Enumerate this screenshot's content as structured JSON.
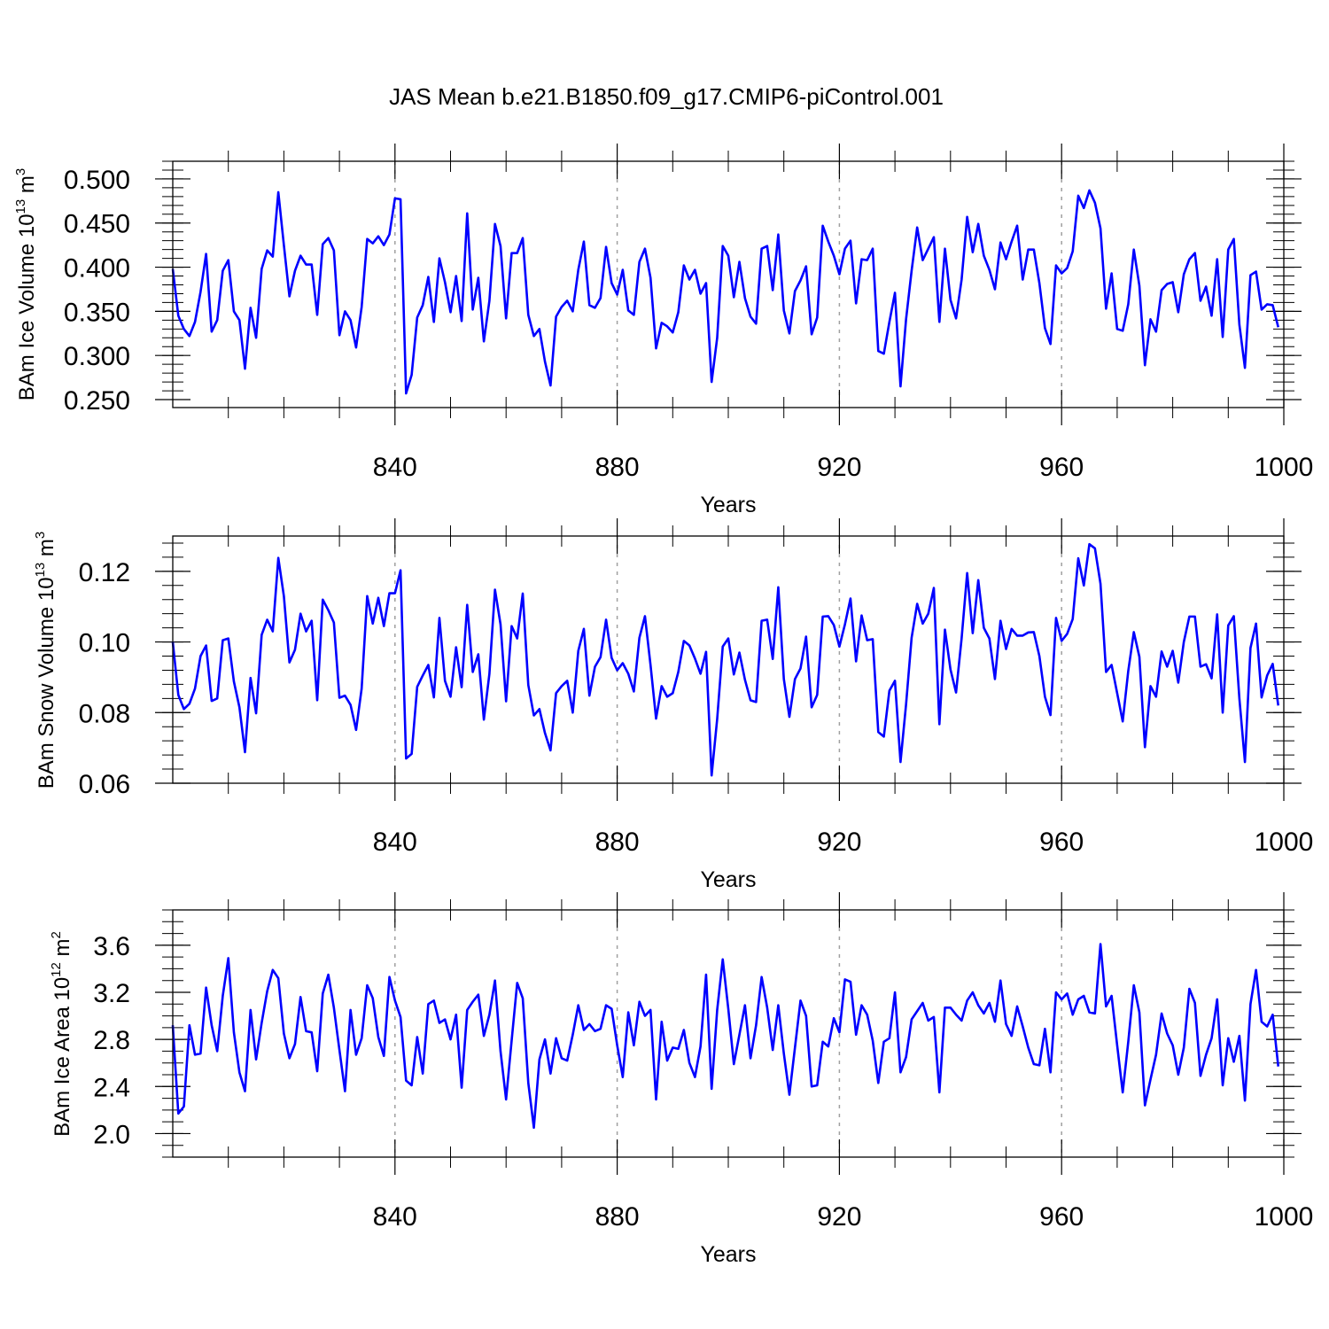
{
  "chart_data": {
    "type": "line",
    "title": "JAS Mean b.e21.B1850.f09_g17.CMIP6-piControl.001",
    "x_start": 800,
    "x_step": 1,
    "xlim": [
      800,
      1000
    ],
    "xticks": [
      840,
      880,
      920,
      960,
      1000
    ],
    "xtick_labels": [
      "840",
      "880",
      "920",
      "960",
      "1000"
    ],
    "line_color": "#0000ff",
    "grid_color": "#a0a0a0",
    "panels": [
      {
        "id": "ice-volume",
        "xlabel": "Years",
        "ylabel_text": "BAm Ice Volume 10",
        "ylabel_exp": "13",
        "ylabel_unit": " m",
        "ylabel_unit_exp": "3",
        "ylim": [
          0.241,
          0.52
        ],
        "yticks": [
          0.25,
          0.3,
          0.35,
          0.4,
          0.45,
          0.5
        ],
        "ytick_labels": [
          "0.250",
          "0.300",
          "0.350",
          "0.400",
          "0.450",
          "0.500"
        ],
        "minor_step": 0.01,
        "values": [
          0.398,
          0.345,
          0.33,
          0.322,
          0.338,
          0.372,
          0.415,
          0.327,
          0.34,
          0.396,
          0.408,
          0.35,
          0.34,
          0.285,
          0.354,
          0.32,
          0.398,
          0.419,
          0.412,
          0.485,
          0.425,
          0.367,
          0.396,
          0.413,
          0.403,
          0.403,
          0.346,
          0.426,
          0.433,
          0.419,
          0.323,
          0.35,
          0.34,
          0.309,
          0.355,
          0.432,
          0.427,
          0.435,
          0.425,
          0.437,
          0.478,
          0.477,
          0.257,
          0.278,
          0.343,
          0.357,
          0.389,
          0.338,
          0.41,
          0.383,
          0.349,
          0.39,
          0.339,
          0.461,
          0.352,
          0.388,
          0.316,
          0.362,
          0.449,
          0.424,
          0.342,
          0.416,
          0.416,
          0.433,
          0.346,
          0.322,
          0.33,
          0.293,
          0.266,
          0.344,
          0.355,
          0.362,
          0.35,
          0.397,
          0.429,
          0.357,
          0.354,
          0.365,
          0.423,
          0.382,
          0.369,
          0.397,
          0.351,
          0.346,
          0.406,
          0.421,
          0.388,
          0.308,
          0.337,
          0.333,
          0.326,
          0.349,
          0.402,
          0.386,
          0.397,
          0.37,
          0.382,
          0.27,
          0.32,
          0.424,
          0.413,
          0.366,
          0.406,
          0.365,
          0.344,
          0.336,
          0.421,
          0.424,
          0.374,
          0.437,
          0.351,
          0.325,
          0.373,
          0.385,
          0.401,
          0.324,
          0.343,
          0.447,
          0.429,
          0.413,
          0.392,
          0.421,
          0.43,
          0.359,
          0.409,
          0.408,
          0.421,
          0.305,
          0.302,
          0.338,
          0.371,
          0.265,
          0.341,
          0.396,
          0.445,
          0.408,
          0.421,
          0.434,
          0.338,
          0.421,
          0.363,
          0.342,
          0.386,
          0.457,
          0.417,
          0.449,
          0.413,
          0.397,
          0.375,
          0.428,
          0.409,
          0.429,
          0.447,
          0.386,
          0.42,
          0.42,
          0.382,
          0.331,
          0.313,
          0.402,
          0.393,
          0.399,
          0.418,
          0.481,
          0.467,
          0.487,
          0.473,
          0.444,
          0.353,
          0.393,
          0.33,
          0.328,
          0.358,
          0.42,
          0.379,
          0.289,
          0.341,
          0.327,
          0.374,
          0.381,
          0.383,
          0.349,
          0.392,
          0.409,
          0.416,
          0.362,
          0.378,
          0.345,
          0.409,
          0.321,
          0.42,
          0.432,
          0.335,
          0.286,
          0.391,
          0.395,
          0.352,
          0.358,
          0.357,
          0.332
        ]
      },
      {
        "id": "snow-volume",
        "xlabel": "Years",
        "ylabel_text": "BAm Snow Volume 10",
        "ylabel_exp": "13",
        "ylabel_unit": " m",
        "ylabel_unit_exp": "3",
        "ylim": [
          0.06,
          0.13
        ],
        "yticks": [
          0.06,
          0.08,
          0.1,
          0.12
        ],
        "ytick_labels": [
          "0.06",
          "0.08",
          "0.10",
          "0.12"
        ],
        "minor_step": 0.004,
        "values": [
          0.1,
          0.085,
          0.081,
          0.0825,
          0.0868,
          0.096,
          0.099,
          0.0833,
          0.084,
          0.1005,
          0.101,
          0.0888,
          0.0815,
          0.0688,
          0.0898,
          0.0798,
          0.102,
          0.1063,
          0.103,
          0.1238,
          0.113,
          0.0942,
          0.0978,
          0.108,
          0.103,
          0.106,
          0.0835,
          0.112,
          0.109,
          0.1055,
          0.0842,
          0.0848,
          0.0822,
          0.0751,
          0.0868,
          0.113,
          0.1052,
          0.1125,
          0.1045,
          0.1138,
          0.1138,
          0.1203,
          0.067,
          0.0683,
          0.0873,
          0.0905,
          0.0935,
          0.0843,
          0.1068,
          0.089,
          0.0845,
          0.0985,
          0.0872,
          0.1105,
          0.0915,
          0.0965,
          0.078,
          0.091,
          0.1148,
          0.105,
          0.0832,
          0.1045,
          0.101,
          0.1137,
          0.0878,
          0.0792,
          0.081,
          0.0742,
          0.0693,
          0.0855,
          0.0875,
          0.089,
          0.08,
          0.0975,
          0.1037,
          0.0848,
          0.093,
          0.0957,
          0.1063,
          0.0955,
          0.092,
          0.094,
          0.091,
          0.086,
          0.1012,
          0.1073,
          0.0935,
          0.0783,
          0.0875,
          0.0845,
          0.0855,
          0.0915,
          0.1003,
          0.099,
          0.0953,
          0.091,
          0.0972,
          0.0622,
          0.0782,
          0.0987,
          0.101,
          0.0908,
          0.097,
          0.0893,
          0.0835,
          0.083,
          0.106,
          0.1063,
          0.0952,
          0.1155,
          0.0895,
          0.0788,
          0.0895,
          0.0925,
          0.1015,
          0.0815,
          0.085,
          0.1072,
          0.1073,
          0.1048,
          0.0987,
          0.105,
          0.1123,
          0.0945,
          0.1075,
          0.1005,
          0.1008,
          0.0745,
          0.0732,
          0.0862,
          0.089,
          0.066,
          0.0823,
          0.1012,
          0.1108,
          0.1052,
          0.108,
          0.1153,
          0.0767,
          0.1035,
          0.0922,
          0.0857,
          0.101,
          0.1195,
          0.1025,
          0.1175,
          0.104,
          0.101,
          0.0895,
          0.106,
          0.098,
          0.1037,
          0.1018,
          0.1018,
          0.1027,
          0.1028,
          0.096,
          0.0845,
          0.0793,
          0.1068,
          0.1003,
          0.1023,
          0.1065,
          0.1237,
          0.116,
          0.1277,
          0.1265,
          0.1165,
          0.0915,
          0.0935,
          0.0855,
          0.0775,
          0.0918,
          0.1028,
          0.0958,
          0.0702,
          0.0875,
          0.0845,
          0.0973,
          0.093,
          0.0975,
          0.0885,
          0.1,
          0.1072,
          0.1072,
          0.093,
          0.0937,
          0.0897,
          0.1078,
          0.08,
          0.1047,
          0.1073,
          0.084,
          0.066,
          0.0983,
          0.1052,
          0.0843,
          0.0905,
          0.0938,
          0.082
        ]
      },
      {
        "id": "ice-area",
        "xlabel": "Years",
        "ylabel_text": "BAm Ice Area 10",
        "ylabel_exp": "12",
        "ylabel_unit": " m",
        "ylabel_unit_exp": "2",
        "ylim": [
          1.8,
          3.9
        ],
        "yticks": [
          2.0,
          2.4,
          2.8,
          3.2,
          3.6
        ],
        "ytick_labels": [
          "2.0",
          "2.4",
          "2.8",
          "3.2",
          "3.6"
        ],
        "minor_step": 0.1,
        "values": [
          2.92,
          2.17,
          2.23,
          2.92,
          2.67,
          2.68,
          3.24,
          2.92,
          2.7,
          3.17,
          3.49,
          2.86,
          2.52,
          2.36,
          3.05,
          2.63,
          2.94,
          3.21,
          3.39,
          3.32,
          2.85,
          2.64,
          2.76,
          3.16,
          2.87,
          2.86,
          2.53,
          3.19,
          3.35,
          3.07,
          2.71,
          2.36,
          3.05,
          2.67,
          2.81,
          3.26,
          3.15,
          2.82,
          2.66,
          3.33,
          3.13,
          2.99,
          2.45,
          2.41,
          2.82,
          2.51,
          3.1,
          3.13,
          2.94,
          2.97,
          2.8,
          3.01,
          2.39,
          3.05,
          3.12,
          3.18,
          2.83,
          3.01,
          3.3,
          2.7,
          2.29,
          2.79,
          3.28,
          3.15,
          2.43,
          2.05,
          2.63,
          2.8,
          2.51,
          2.81,
          2.64,
          2.62,
          2.84,
          3.09,
          2.88,
          2.93,
          2.87,
          2.89,
          3.09,
          3.06,
          2.75,
          2.48,
          3.03,
          2.75,
          3.12,
          3.0,
          3.05,
          2.29,
          2.95,
          2.62,
          2.73,
          2.72,
          2.88,
          2.6,
          2.48,
          2.74,
          3.35,
          2.38,
          3.05,
          3.48,
          3.06,
          2.59,
          2.84,
          3.09,
          2.64,
          2.92,
          3.33,
          3.07,
          2.71,
          3.09,
          2.68,
          2.33,
          2.73,
          3.13,
          3.0,
          2.4,
          2.41,
          2.78,
          2.74,
          2.98,
          2.86,
          3.31,
          3.29,
          2.84,
          3.09,
          3.01,
          2.79,
          2.43,
          2.78,
          2.81,
          3.2,
          2.52,
          2.65,
          2.97,
          3.04,
          3.11,
          2.96,
          2.99,
          2.35,
          3.07,
          3.07,
          3.01,
          2.96,
          3.13,
          3.2,
          3.09,
          3.02,
          3.11,
          2.95,
          3.3,
          2.93,
          2.83,
          3.08,
          2.91,
          2.73,
          2.59,
          2.58,
          2.89,
          2.52,
          3.2,
          3.14,
          3.19,
          3.01,
          3.14,
          3.17,
          3.03,
          3.02,
          3.61,
          3.08,
          3.17,
          2.75,
          2.35,
          2.78,
          3.26,
          3.03,
          2.24,
          2.46,
          2.67,
          3.02,
          2.85,
          2.75,
          2.5,
          2.73,
          3.23,
          3.11,
          2.49,
          2.67,
          2.81,
          3.14,
          2.41,
          2.81,
          2.61,
          2.83,
          2.28,
          3.1,
          3.39,
          2.95,
          2.91,
          3.01,
          2.57
        ]
      }
    ]
  }
}
